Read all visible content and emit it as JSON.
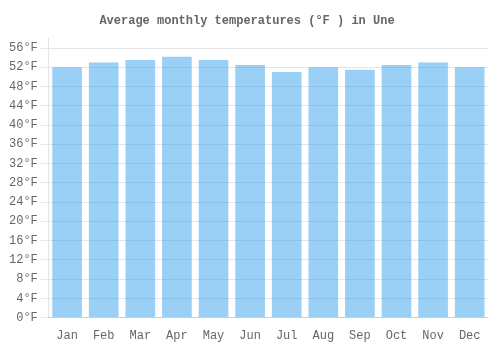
{
  "chart_data": {
    "type": "bar",
    "title": "Average monthly temperatures (°F ) in Une",
    "categories": [
      "Jan",
      "Feb",
      "Mar",
      "Apr",
      "May",
      "Jun",
      "Jul",
      "Aug",
      "Sep",
      "Oct",
      "Nov",
      "Dec"
    ],
    "values": [
      52.0,
      53.0,
      53.5,
      54.2,
      53.5,
      52.5,
      51.0,
      52.0,
      51.5,
      52.5,
      53.0,
      52.0
    ],
    "ylim": [
      0,
      58
    ],
    "yticks": [
      {
        "value": 0,
        "label": "0°F"
      },
      {
        "value": 4,
        "label": "4°F"
      },
      {
        "value": 8,
        "label": "8°F"
      },
      {
        "value": 12,
        "label": "12°F"
      },
      {
        "value": 16,
        "label": "16°F"
      },
      {
        "value": 20,
        "label": "20°F"
      },
      {
        "value": 24,
        "label": "24°F"
      },
      {
        "value": 28,
        "label": "28°F"
      },
      {
        "value": 32,
        "label": "32°F"
      },
      {
        "value": 36,
        "label": "36°F"
      },
      {
        "value": 40,
        "label": "40°F"
      },
      {
        "value": 44,
        "label": "44°F"
      },
      {
        "value": 48,
        "label": "48°F"
      },
      {
        "value": 52,
        "label": "52°F"
      },
      {
        "value": 56,
        "label": "56°F"
      }
    ],
    "grid": true
  }
}
